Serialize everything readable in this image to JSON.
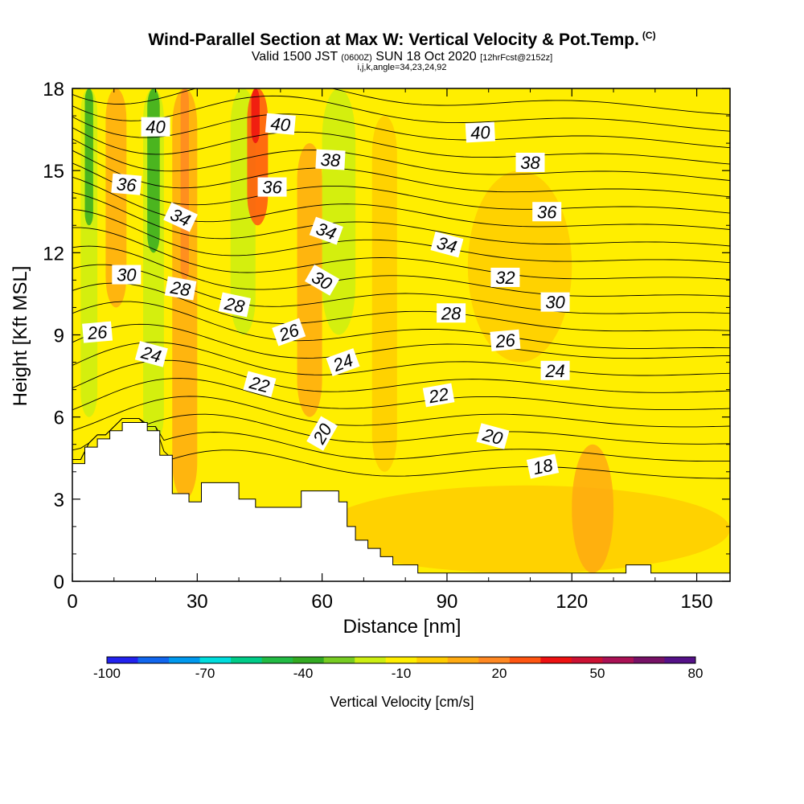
{
  "chart_data": {
    "type": "heatmap",
    "title": "Wind-Parallel Section at Max W: Vertical Velocity & Pot.Temp.",
    "title_mark": "(C)",
    "subtitle": {
      "valid": "Valid 1500 JST",
      "utc": "(0600Z)",
      "date": "SUN 18 Oct 2020",
      "fcst": "[12hrFcst@2152z]"
    },
    "subtitle2": "i,j,k,angle=34,23,24,92",
    "xlabel": "Distance [nm]",
    "ylabel": "Height [Kft MSL]",
    "xlim": [
      0,
      158
    ],
    "ylim": [
      0,
      18
    ],
    "xticks": [
      0,
      30,
      60,
      90,
      120,
      150
    ],
    "yticks": [
      0,
      3,
      6,
      9,
      12,
      15,
      18
    ],
    "colorbar": {
      "label": "Vertical Velocity [cm/s]",
      "tick_labels": [
        "-100",
        "-70",
        "-40",
        "-10",
        "20",
        "50",
        "80"
      ],
      "tick_values": [
        -100,
        -70,
        -40,
        -10,
        20,
        50,
        80
      ],
      "colors": [
        "#2222ee",
        "#1166ee",
        "#0099ee",
        "#00dddd",
        "#00cc88",
        "#22bb44",
        "#33aa22",
        "#77cc22",
        "#ccee11",
        "#ffee00",
        "#ffcc00",
        "#ffaa11",
        "#ff8822",
        "#ff5511",
        "#ee1111",
        "#cc1133",
        "#aa1155",
        "#771166",
        "#551188"
      ]
    },
    "background_w": "#ffee00",
    "w_features": [
      {
        "x0": 2,
        "x1": 6,
        "y_bottom": 6,
        "y_top": 18,
        "color": "#ccee11"
      },
      {
        "x0": 3,
        "x1": 5,
        "y_bottom": 13,
        "y_top": 18,
        "color": "#33aa22"
      },
      {
        "x0": 8,
        "x1": 13,
        "y_bottom": 10,
        "y_top": 18,
        "color": "#ffaa11"
      },
      {
        "x0": 17,
        "x1": 22,
        "y_bottom": 5,
        "y_top": 18,
        "color": "#ccee11"
      },
      {
        "x0": 18,
        "x1": 21,
        "y_bottom": 12,
        "y_top": 18,
        "color": "#33aa22"
      },
      {
        "x0": 24,
        "x1": 30,
        "y_bottom": 3,
        "y_top": 18,
        "color": "#ffaa11"
      },
      {
        "x0": 26,
        "x1": 28,
        "y_bottom": 11,
        "y_top": 18,
        "color": "#ff8822"
      },
      {
        "x0": 38,
        "x1": 44,
        "y_bottom": 9,
        "y_top": 18,
        "color": "#ccee11"
      },
      {
        "x0": 42,
        "x1": 47,
        "y_bottom": 13,
        "y_top": 18,
        "color": "#ff5511"
      },
      {
        "x0": 43,
        "x1": 45,
        "y_bottom": 16,
        "y_top": 18,
        "color": "#ee1111"
      },
      {
        "x0": 60,
        "x1": 68,
        "y_bottom": 9,
        "y_top": 18,
        "color": "#ccee11"
      },
      {
        "x0": 54,
        "x1": 60,
        "y_bottom": 6,
        "y_top": 16,
        "color": "#ffaa11"
      },
      {
        "x0": 72,
        "x1": 78,
        "y_bottom": 4,
        "y_top": 17,
        "color": "#ffcc00"
      },
      {
        "x0": 95,
        "x1": 120,
        "y_bottom": 8,
        "y_top": 15,
        "color": "#ffcc00"
      },
      {
        "x0": 60,
        "x1": 158,
        "y_bottom": 0.3,
        "y_top": 3.5,
        "color": "#ffcc00"
      },
      {
        "x0": 120,
        "x1": 130,
        "y_bottom": 0.3,
        "y_top": 5,
        "color": "#ffaa11"
      }
    ],
    "terrain": [
      [
        0,
        4.3
      ],
      [
        3,
        4.3
      ],
      [
        3,
        4.9
      ],
      [
        6,
        4.9
      ],
      [
        6,
        5.2
      ],
      [
        9,
        5.2
      ],
      [
        9,
        5.5
      ],
      [
        12,
        5.5
      ],
      [
        12,
        5.8
      ],
      [
        18,
        5.8
      ],
      [
        18,
        5.5
      ],
      [
        21,
        5.5
      ],
      [
        21,
        4.6
      ],
      [
        24,
        4.6
      ],
      [
        24,
        3.2
      ],
      [
        28,
        3.2
      ],
      [
        28,
        2.9
      ],
      [
        31,
        2.9
      ],
      [
        31,
        3.6
      ],
      [
        40,
        3.6
      ],
      [
        40,
        3.0
      ],
      [
        44,
        3.0
      ],
      [
        44,
        2.7
      ],
      [
        55,
        2.7
      ],
      [
        55,
        3.3
      ],
      [
        64,
        3.3
      ],
      [
        64,
        2.9
      ],
      [
        66,
        2.9
      ],
      [
        66,
        2.0
      ],
      [
        68,
        2.0
      ],
      [
        68,
        1.5
      ],
      [
        71,
        1.5
      ],
      [
        71,
        1.2
      ],
      [
        74,
        1.2
      ],
      [
        74,
        0.9
      ],
      [
        77,
        0.9
      ],
      [
        77,
        0.6
      ],
      [
        83,
        0.6
      ],
      [
        83,
        0.3
      ],
      [
        133,
        0.3
      ],
      [
        133,
        0.6
      ],
      [
        139,
        0.6
      ],
      [
        139,
        0.3
      ],
      [
        158,
        0.3
      ]
    ],
    "theta_levels": [
      18,
      19,
      20,
      21,
      22,
      23,
      24,
      25,
      26,
      27,
      28,
      29,
      30,
      31,
      32,
      33,
      34,
      35,
      36,
      37,
      38,
      39,
      40
    ],
    "theta_labels": [
      {
        "text": "40",
        "x": 20,
        "y": 16.6,
        "angle": 0
      },
      {
        "text": "40",
        "x": 50,
        "y": 16.7,
        "angle": 5
      },
      {
        "text": "40",
        "x": 98,
        "y": 16.4,
        "angle": -3
      },
      {
        "text": "38",
        "x": 62,
        "y": 15.4,
        "angle": 3
      },
      {
        "text": "38",
        "x": 110,
        "y": 15.3,
        "angle": 0
      },
      {
        "text": "36",
        "x": 13,
        "y": 14.5,
        "angle": 5
      },
      {
        "text": "36",
        "x": 48,
        "y": 14.4,
        "angle": 0
      },
      {
        "text": "36",
        "x": 114,
        "y": 13.5,
        "angle": 0
      },
      {
        "text": "34",
        "x": 26,
        "y": 13.3,
        "angle": 25
      },
      {
        "text": "34",
        "x": 61,
        "y": 12.8,
        "angle": 20
      },
      {
        "text": "34",
        "x": 90,
        "y": 12.3,
        "angle": 15
      },
      {
        "text": "32",
        "x": 104,
        "y": 11.1,
        "angle": 0
      },
      {
        "text": "30",
        "x": 13,
        "y": 11.2,
        "angle": 0
      },
      {
        "text": "30",
        "x": 60,
        "y": 11.0,
        "angle": 30
      },
      {
        "text": "30",
        "x": 116,
        "y": 10.2,
        "angle": 0
      },
      {
        "text": "28",
        "x": 26,
        "y": 10.7,
        "angle": 10
      },
      {
        "text": "28",
        "x": 39,
        "y": 10.1,
        "angle": 12
      },
      {
        "text": "28",
        "x": 91,
        "y": 9.8,
        "angle": 0
      },
      {
        "text": "26",
        "x": 6,
        "y": 9.1,
        "angle": -5
      },
      {
        "text": "26",
        "x": 52,
        "y": 9.1,
        "angle": -20
      },
      {
        "text": "26",
        "x": 104,
        "y": 8.8,
        "angle": -5
      },
      {
        "text": "24",
        "x": 19,
        "y": 8.3,
        "angle": 15
      },
      {
        "text": "24",
        "x": 65,
        "y": 8.0,
        "angle": -20
      },
      {
        "text": "24",
        "x": 116,
        "y": 7.7,
        "angle": 0
      },
      {
        "text": "22",
        "x": 45,
        "y": 7.2,
        "angle": 15
      },
      {
        "text": "22",
        "x": 88,
        "y": 6.8,
        "angle": -10
      },
      {
        "text": "20",
        "x": 60,
        "y": 5.4,
        "angle": -60
      },
      {
        "text": "20",
        "x": 101,
        "y": 5.3,
        "angle": 15
      },
      {
        "text": "18",
        "x": 113,
        "y": 4.2,
        "angle": -12
      }
    ]
  }
}
